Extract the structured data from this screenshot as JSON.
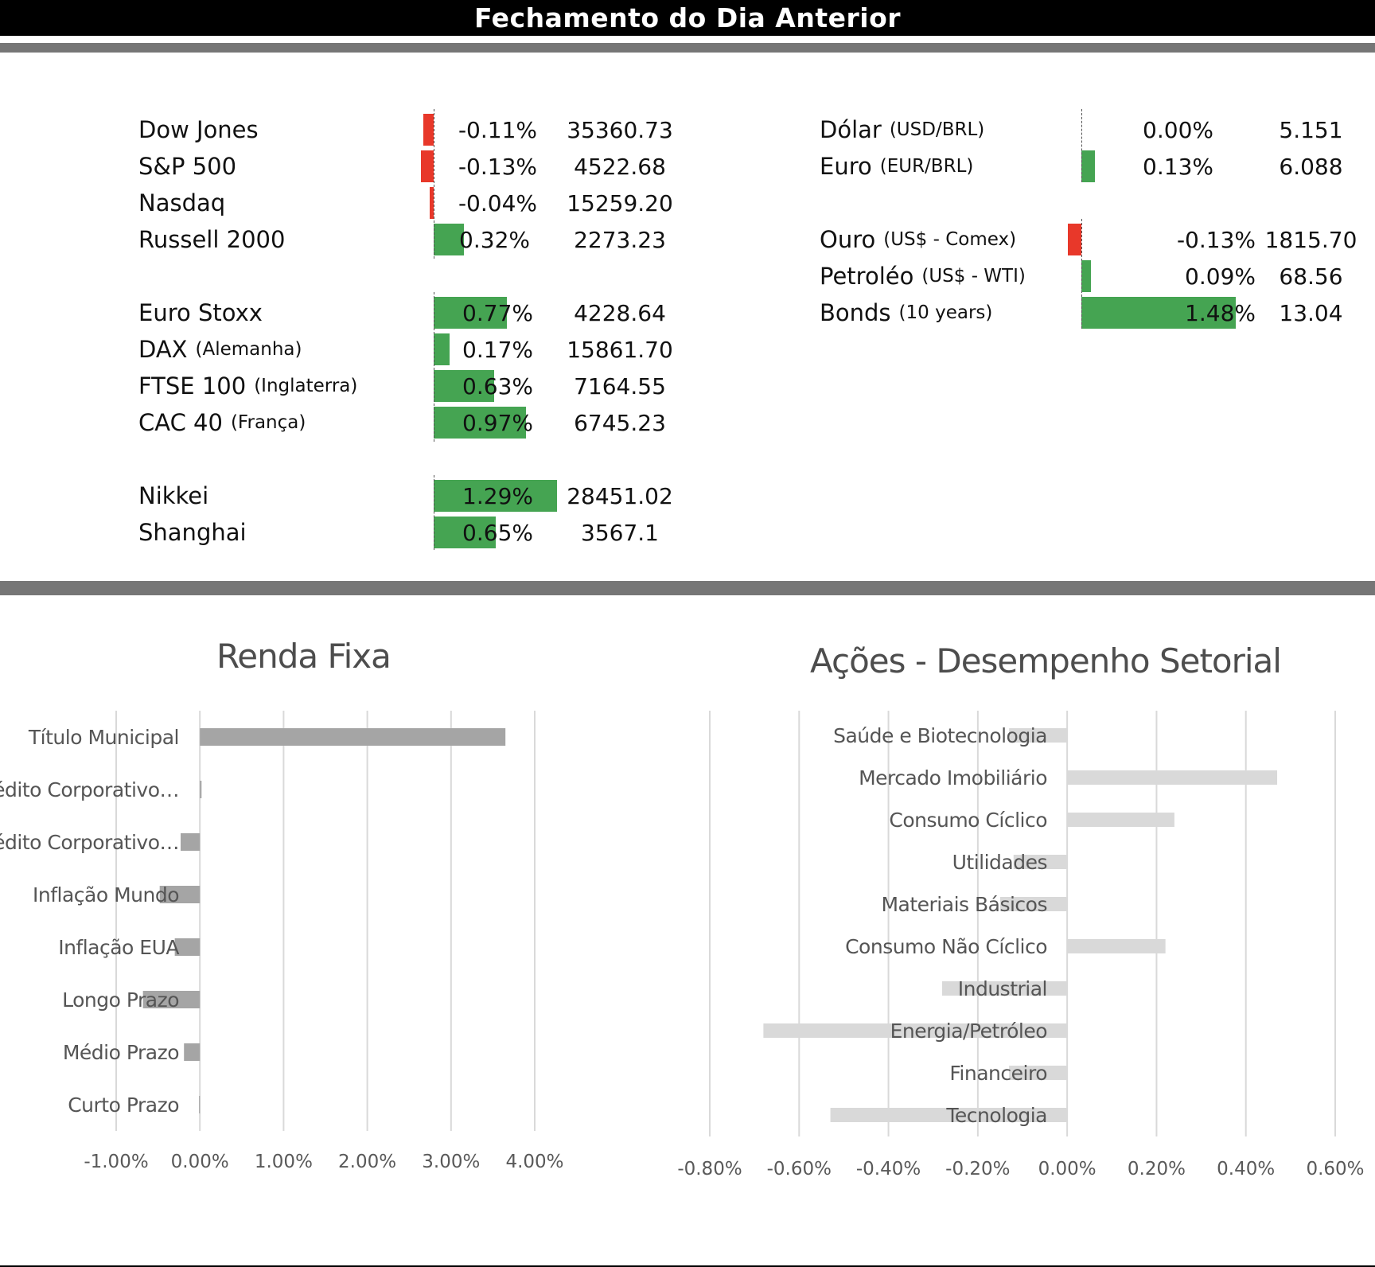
{
  "header": {
    "title": "Fechamento do Dia Anterior"
  },
  "indices": [
    {
      "name": "Dow Jones",
      "sub": "",
      "pct": -0.11,
      "pct_label": "-0.11%",
      "value": "35360.73"
    },
    {
      "name": "S&P 500",
      "sub": "",
      "pct": -0.13,
      "pct_label": "-0.13%",
      "value": "4522.68"
    },
    {
      "name": "Nasdaq",
      "sub": "",
      "pct": -0.04,
      "pct_label": "-0.04%",
      "value": "15259.20"
    },
    {
      "name": "Russell 2000",
      "sub": "",
      "pct": 0.32,
      "pct_label": "0.32%",
      "value": "2273.23"
    },
    {
      "name": "Euro Stoxx",
      "sub": "",
      "pct": 0.77,
      "pct_label": "0.77%",
      "value": "4228.64"
    },
    {
      "name": "DAX",
      "sub": "(Alemanha)",
      "pct": 0.17,
      "pct_label": "0.17%",
      "value": "15861.70"
    },
    {
      "name": "FTSE 100",
      "sub": "(Inglaterra)",
      "pct": 0.63,
      "pct_label": "0.63%",
      "value": "7164.55"
    },
    {
      "name": "CAC 40",
      "sub": "(França)",
      "pct": 0.97,
      "pct_label": "0.97%",
      "value": "6745.23"
    },
    {
      "name": "Nikkei",
      "sub": "",
      "pct": 1.29,
      "pct_label": "1.29%",
      "value": "28451.02"
    },
    {
      "name": "Shanghai",
      "sub": "",
      "pct": 0.65,
      "pct_label": "0.65%",
      "value": "3567.1"
    }
  ],
  "assets": [
    {
      "name": "Dólar",
      "sub": "(USD/BRL)",
      "pct": 0.0,
      "pct_label": "0.00%",
      "value": "5.151"
    },
    {
      "name": "Euro",
      "sub": "(EUR/BRL)",
      "pct": 0.13,
      "pct_label": "0.13%",
      "value": "6.088"
    },
    {
      "name": "Ouro",
      "sub": "(US$ - Comex)",
      "pct": -0.13,
      "pct_label": "-0.13%",
      "value": "1815.70"
    },
    {
      "name": "Petroléo",
      "sub": "(US$ - WTI)",
      "pct": 0.09,
      "pct_label": "0.09%",
      "value": "68.56"
    },
    {
      "name": "Bonds",
      "sub": "(10 years)",
      "pct": 1.48,
      "pct_label": "1.48%",
      "value": "13.04"
    }
  ],
  "colors": {
    "positive": "#45a452",
    "negative": "#e8382a",
    "renda_bar": "#a5a5a5",
    "acoes_bar": "#d9d9d9",
    "grid": "#d9d9d9"
  },
  "chart_data": [
    {
      "type": "bar",
      "orientation": "horizontal",
      "title": "Renda Fixa",
      "categories": [
        "Título Municipal",
        "Crédito Corporativo…",
        "Crédito Corporativo…",
        "Inflação Mundo",
        "Inflação EUA",
        "Longo Prazo",
        "Médio Prazo",
        "Curto Prazo"
      ],
      "values": [
        3.65,
        0.02,
        -0.23,
        -0.48,
        -0.3,
        -0.68,
        -0.19,
        -0.01
      ],
      "xlim": [
        -1.0,
        4.0
      ],
      "ticks": [
        -1.0,
        0.0,
        1.0,
        2.0,
        3.0,
        4.0
      ],
      "tick_labels": [
        "-1.00%",
        "0.00%",
        "1.00%",
        "2.00%",
        "3.00%",
        "4.00%"
      ],
      "grid": true
    },
    {
      "type": "bar",
      "orientation": "horizontal",
      "title": "Ações - Desempenho Setorial",
      "categories": [
        "Saúde e Biotecnologia",
        "Mercado Imobiliário",
        "Consumo Cíclico",
        "Utilidades",
        "Materiais Básicos",
        "Consumo Não Cíclico",
        "Industrial",
        "Energia/Petróleo",
        "Financeiro",
        "Tecnologia"
      ],
      "values": [
        -0.13,
        0.47,
        0.24,
        -0.12,
        -0.15,
        0.22,
        -0.28,
        -0.68,
        -0.13,
        -0.53
      ],
      "xlim": [
        -0.8,
        0.6
      ],
      "ticks": [
        -0.8,
        -0.6,
        -0.4,
        -0.2,
        0.0,
        0.2,
        0.4,
        0.6
      ],
      "tick_labels": [
        "-0.80%",
        "-0.60%",
        "-0.40%",
        "-0.20%",
        "0.00%",
        "0.20%",
        "0.40%",
        "0.60%"
      ],
      "grid": true
    }
  ]
}
